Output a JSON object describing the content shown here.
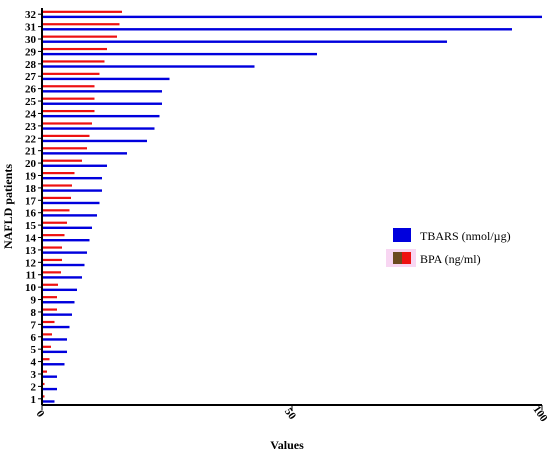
{
  "chart_data": {
    "type": "bar",
    "orientation": "horizontal",
    "xlabel": "Values",
    "ylabel": "NAFLD patients",
    "xlim": [
      0,
      100
    ],
    "xticks": [
      0,
      50,
      100
    ],
    "categories": [
      "1",
      "2",
      "3",
      "4",
      "5",
      "6",
      "7",
      "8",
      "9",
      "10",
      "11",
      "12",
      "13",
      "14",
      "15",
      "16",
      "17",
      "18",
      "19",
      "20",
      "21",
      "22",
      "23",
      "24",
      "25",
      "26",
      "27",
      "28",
      "29",
      "30",
      "31",
      "32"
    ],
    "series": [
      {
        "name": "TBARS (nmol/µg)",
        "color": "#0000dd",
        "values": [
          2.5,
          3,
          3,
          4.5,
          5,
          5,
          5.5,
          6,
          6.5,
          7,
          8,
          8.5,
          9,
          9.5,
          10,
          11,
          11.5,
          12,
          12,
          13,
          17,
          21,
          22.5,
          23.5,
          24,
          24,
          25.5,
          42.5,
          55,
          81,
          94,
          100
        ]
      },
      {
        "name": "BPA (ng/ml)",
        "color": "#ee1111",
        "values": [
          0.5,
          0.5,
          1,
          1.5,
          1.8,
          2,
          2.5,
          3,
          3,
          3.2,
          3.8,
          4,
          4,
          4.5,
          5,
          5.5,
          5.8,
          6,
          6.5,
          8,
          9,
          9.5,
          10,
          10.5,
          10.5,
          10.5,
          11.5,
          12.5,
          13,
          15,
          15.5,
          16
        ]
      }
    ],
    "legend_position": "right",
    "grid": false
  }
}
